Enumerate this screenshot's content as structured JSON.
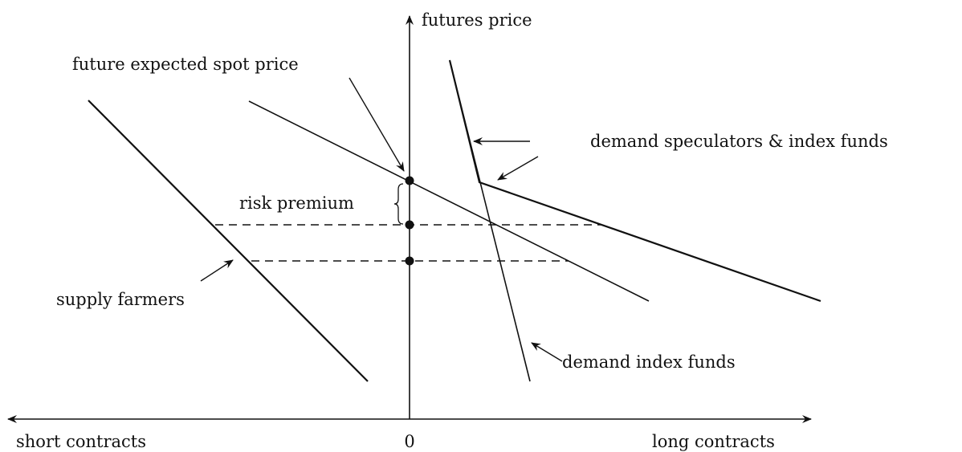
{
  "axes": {
    "y_label": "futures price",
    "x_left_label": "short contracts",
    "origin_label": "0",
    "x_right_label": "long contracts"
  },
  "labels": {
    "expected_spot": "future expected spot price",
    "demand_speculators": "demand speculators & index funds",
    "risk_premium": "risk premium",
    "supply": "supply farmers",
    "demand_index": "demand index funds"
  }
}
